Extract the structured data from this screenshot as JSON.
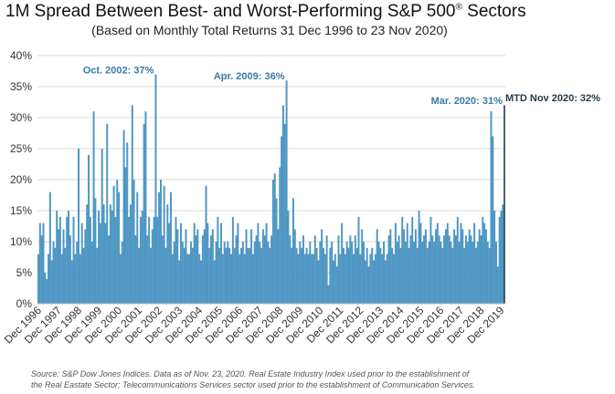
{
  "title": "1M Spread Between Best- and Worst-Performing S&P 500",
  "title_sup": "®",
  "title_suffix": " Sectors",
  "subtitle": "(Based on Monthly Total Returns 31 Dec 1996 to 23 Nov 2020)",
  "source_line1": "Source: S&P Dow Jones Indices.  Data as of Nov. 23, 2020.  Real Estate Industry Index used prior to the establishment of",
  "source_line2": "the Real Eastate Sector; Telecommunications Services sector used prior to the establishment of Communication Services.",
  "colors": {
    "bar": "#4f97c4",
    "last_bar": "#1f3b4d",
    "grid": "#d9d9d9",
    "annotation": "#3a7aa6",
    "annotation_dark": "#1f3b4d"
  },
  "chart_data": {
    "type": "bar",
    "grid": true,
    "ylim": [
      0,
      40
    ],
    "y_ticks": [
      "0%",
      "5%",
      "10%",
      "15%",
      "20%",
      "25%",
      "30%",
      "35%",
      "40%"
    ],
    "x_tick_labels": [
      "Dec 1996",
      "Dec 1997",
      "Dec 1998",
      "Dec 1999",
      "Dec 2000",
      "Dec 2001",
      "Dec 2002",
      "Dec 2003",
      "Dec 2004",
      "Dec 2005",
      "Dec 2006",
      "Dec 2007",
      "Dec 2008",
      "Dec 2009",
      "Dec 2010",
      "Dec 2011",
      "Dec 2012",
      "Dec 2013",
      "Dec 2014",
      "Dec 2015",
      "Dec 2016",
      "Dec 2017",
      "Dec 2018",
      "Dec 2019"
    ],
    "x_tick_every": 12,
    "start": "1996-12",
    "unit": "%",
    "annotations": [
      {
        "text": "Oct. 2002: 37%",
        "index": 70,
        "value": 37
      },
      {
        "text": "Apr. 2009: 36%",
        "index": 148,
        "value": 36
      },
      {
        "text": "Mar. 2020: 31%",
        "index": 279,
        "value": 31
      },
      {
        "text": "MTD Nov 2020: 32%",
        "index": 287,
        "value": 32
      }
    ],
    "values": [
      8,
      13,
      11,
      13,
      5,
      4,
      8,
      18,
      7,
      10,
      9,
      15,
      12,
      14,
      8,
      12,
      9,
      14,
      15,
      11,
      7,
      14,
      8,
      10,
      25,
      8,
      13,
      9,
      12,
      16,
      24,
      14,
      10,
      31,
      17,
      9,
      15,
      13,
      25,
      16,
      13,
      29,
      11,
      16,
      15,
      19,
      14,
      20,
      18,
      8,
      10,
      28,
      22,
      26,
      14,
      16,
      32,
      20,
      11,
      18,
      9,
      14,
      15,
      29,
      31,
      11,
      14,
      9,
      12,
      14,
      37,
      14,
      18,
      20,
      11,
      19,
      9,
      16,
      13,
      18,
      8,
      10,
      14,
      12,
      7,
      13,
      10,
      9,
      12,
      8,
      8,
      10,
      9,
      13,
      11,
      12,
      8,
      7,
      11,
      12,
      19,
      13,
      9,
      11,
      12,
      7,
      10,
      14,
      9,
      13,
      8,
      10,
      9,
      10,
      9,
      8,
      14,
      9,
      11,
      13,
      8,
      9,
      10,
      8,
      12,
      9,
      9,
      12,
      8,
      10,
      11,
      13,
      10,
      9,
      12,
      11,
      13,
      10,
      9,
      11,
      20,
      21,
      17,
      12,
      22,
      27,
      32,
      29,
      36,
      15,
      11,
      9,
      17,
      12,
      9,
      8,
      10,
      9,
      11,
      8,
      9,
      8,
      10,
      8,
      8,
      11,
      9,
      7,
      10,
      12,
      9,
      8,
      11,
      3,
      9,
      10,
      7,
      8,
      6,
      11,
      8,
      13,
      9,
      8,
      10,
      9,
      11,
      10,
      8,
      11,
      9,
      14,
      8,
      12,
      10,
      7,
      9,
      6,
      8,
      9,
      7,
      8,
      12,
      10,
      9,
      8,
      10,
      7,
      8,
      11,
      12,
      9,
      8,
      13,
      10,
      11,
      9,
      14,
      12,
      10,
      13,
      9,
      11,
      14,
      10,
      12,
      9,
      15,
      13,
      10,
      11,
      12,
      9,
      10,
      14,
      11,
      10,
      12,
      13,
      11,
      10,
      9,
      11,
      12,
      13,
      11,
      10,
      9,
      12,
      11,
      14,
      10,
      13,
      12,
      9,
      11,
      10,
      12,
      11,
      10,
      13,
      9,
      10,
      12,
      11,
      14,
      13,
      12,
      10,
      9,
      31,
      27,
      15,
      10,
      6,
      14,
      15,
      16,
      32
    ]
  }
}
